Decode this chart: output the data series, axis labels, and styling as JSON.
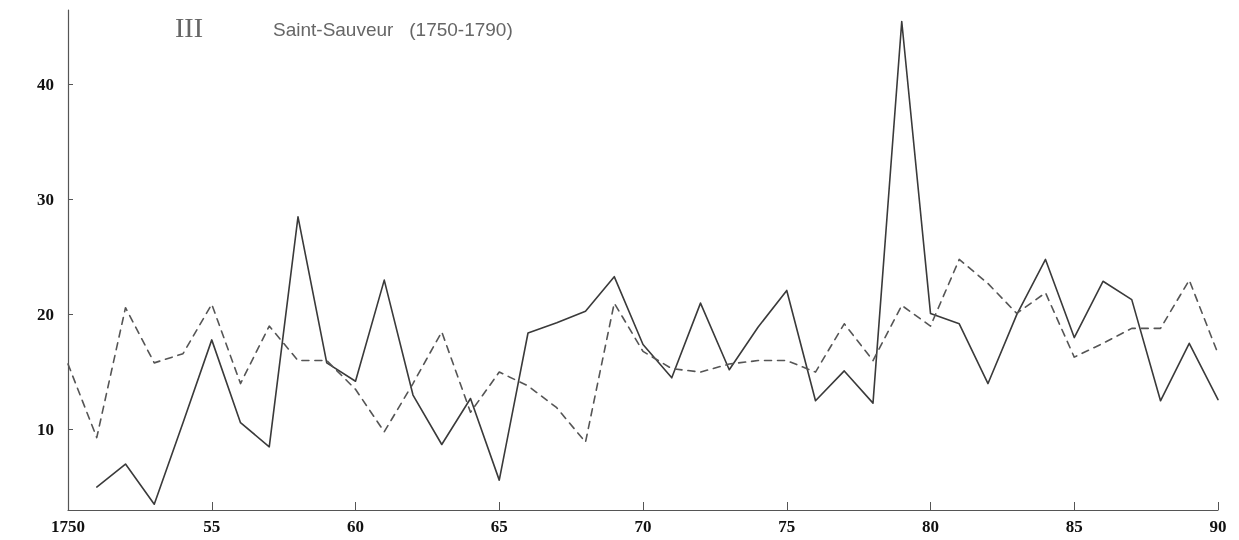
{
  "chart_data": {
    "type": "line",
    "title": "III",
    "subtitle": "Saint-Sauveur   (1750-1790)",
    "categories": [
      "1750",
      null,
      null,
      null,
      null,
      "55",
      null,
      null,
      null,
      null,
      "60",
      null,
      null,
      null,
      null,
      "65",
      null,
      null,
      null,
      null,
      "70",
      null,
      null,
      null,
      null,
      "75",
      null,
      null,
      null,
      null,
      "80",
      null,
      null,
      null,
      null,
      "85",
      null,
      null,
      null,
      null,
      "90"
    ],
    "ylim": [
      3,
      46.5
    ],
    "yticks": [
      10,
      20,
      30,
      40
    ],
    "grid": false,
    "marker": "none",
    "series": [
      {
        "color": "#3a3a3a",
        "line_style": "solid",
        "values": [
          null,
          5,
          7,
          3.5,
          10.6,
          17.8,
          10.6,
          8.5,
          28.5,
          15.8,
          14.2,
          23,
          13,
          8.7,
          12.7,
          5.6,
          18.4,
          19.3,
          20.3,
          23.3,
          17.4,
          14.5,
          21,
          15.2,
          18.9,
          22.1,
          12.5,
          15.1,
          12.3,
          45.5,
          20.1,
          19.2,
          14,
          20,
          24.8,
          18,
          22.9,
          21.3,
          12.5,
          17.5,
          12.6
        ]
      },
      {
        "color": "#555555",
        "line_style": "dashed",
        "values": [
          15.7,
          9.3,
          20.6,
          15.8,
          16.6,
          20.9,
          14,
          19,
          16,
          16,
          13.5,
          9.8,
          14,
          18.5,
          11.5,
          15,
          13.8,
          11.9,
          8.9,
          21,
          16.8,
          15.3,
          15,
          15.7,
          16,
          16,
          15,
          19.2,
          16,
          20.8,
          19,
          24.8,
          22.7,
          20.1,
          21.9,
          16.3,
          17.5,
          18.8,
          18.8,
          23,
          16.6
        ]
      }
    ]
  }
}
